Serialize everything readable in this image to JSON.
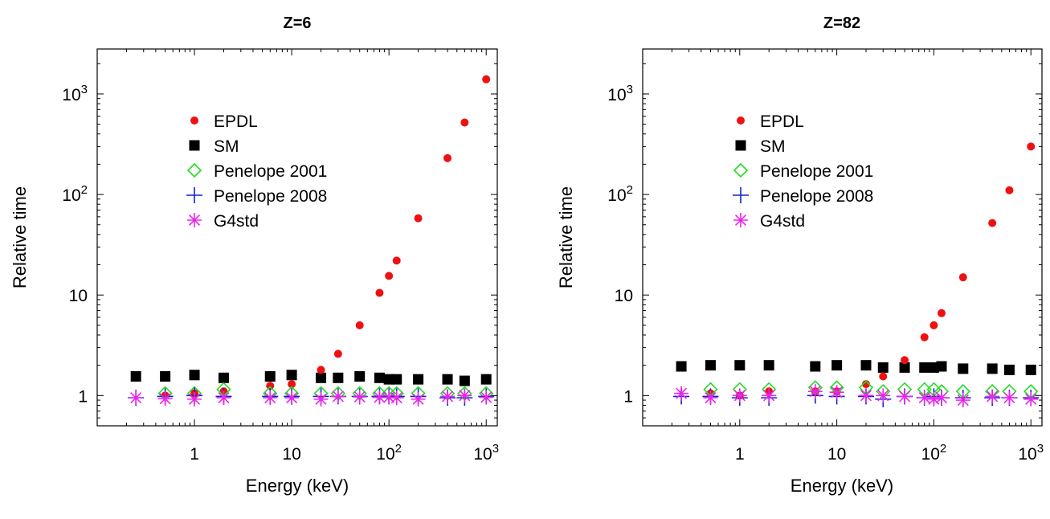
{
  "chart_data": [
    {
      "type": "scatter",
      "title": "Z=6",
      "xlabel": "Energy (keV)",
      "ylabel": "Relative time",
      "xscale": "log",
      "yscale": "log",
      "xlim": [
        0.1,
        1300
      ],
      "ylim": [
        0.5,
        2800
      ],
      "xticks": [
        {
          "v": 1,
          "base": "1",
          "exp": ""
        },
        {
          "v": 10,
          "base": "10",
          "exp": ""
        },
        {
          "v": 100,
          "base": "10",
          "exp": "2"
        },
        {
          "v": 1000,
          "base": "10",
          "exp": "3"
        }
      ],
      "yticks": [
        {
          "v": 1,
          "base": "1",
          "exp": ""
        },
        {
          "v": 10,
          "base": "10",
          "exp": ""
        },
        {
          "v": 100,
          "base": "10",
          "exp": "2"
        },
        {
          "v": 1000,
          "base": "10",
          "exp": "3"
        }
      ],
      "legend_position": "upper-left",
      "grid": false,
      "series": [
        {
          "name": "EPDL",
          "marker": "dot",
          "color": "#ee1111",
          "x": [
            0.5,
            1,
            2,
            6,
            10,
            20,
            30,
            50,
            80,
            100,
            120,
            200,
            400,
            600,
            1000
          ],
          "y": [
            1.0,
            1.05,
            1.1,
            1.25,
            1.3,
            1.8,
            2.6,
            5.0,
            10.5,
            15.5,
            22,
            58,
            230,
            520,
            1400
          ]
        },
        {
          "name": "SM",
          "marker": "square",
          "color": "#000000",
          "x": [
            0.25,
            0.5,
            1,
            2,
            6,
            10,
            20,
            30,
            50,
            80,
            100,
            120,
            200,
            400,
            600,
            1000
          ],
          "y": [
            1.55,
            1.55,
            1.6,
            1.5,
            1.55,
            1.6,
            1.5,
            1.5,
            1.55,
            1.5,
            1.45,
            1.45,
            1.45,
            1.45,
            1.4,
            1.45
          ]
        },
        {
          "name": "Penelope 2001",
          "marker": "diamond",
          "color": "#22dd22",
          "x": [
            0.5,
            1,
            2,
            6,
            10,
            20,
            30,
            50,
            80,
            100,
            120,
            200,
            400,
            600,
            1000
          ],
          "y": [
            1.05,
            1.05,
            1.15,
            1.05,
            1.05,
            1.05,
            1.05,
            1.05,
            1.05,
            1.05,
            1.05,
            1.05,
            1.05,
            1.05,
            1.05
          ]
        },
        {
          "name": "Penelope 2008",
          "marker": "plus",
          "color": "#1122cc",
          "x": [
            0.25,
            0.5,
            1,
            2,
            6,
            10,
            20,
            30,
            50,
            80,
            100,
            120,
            200,
            400,
            600,
            1000
          ],
          "y": [
            0.95,
            0.98,
            1.0,
            0.98,
            0.98,
            0.98,
            0.98,
            0.98,
            0.98,
            0.98,
            0.98,
            0.98,
            0.98,
            0.95,
            0.95,
            0.98
          ]
        },
        {
          "name": "G4std",
          "marker": "star",
          "color": "#ee22ee",
          "x": [
            0.25,
            0.5,
            1,
            2,
            6,
            10,
            20,
            30,
            50,
            80,
            100,
            120,
            200,
            400,
            600,
            1000
          ],
          "y": [
            0.95,
            0.93,
            0.92,
            0.95,
            0.95,
            0.95,
            0.92,
            0.98,
            0.97,
            0.96,
            0.96,
            0.95,
            0.92,
            0.98,
            1.0,
            0.96
          ]
        }
      ]
    },
    {
      "type": "scatter",
      "title": "Z=82",
      "xlabel": "Energy (keV)",
      "ylabel": "Relative time",
      "xscale": "log",
      "yscale": "log",
      "xlim": [
        0.1,
        1300
      ],
      "ylim": [
        0.5,
        2800
      ],
      "xticks": [
        {
          "v": 1,
          "base": "1",
          "exp": ""
        },
        {
          "v": 10,
          "base": "10",
          "exp": ""
        },
        {
          "v": 100,
          "base": "10",
          "exp": "2"
        },
        {
          "v": 1000,
          "base": "10",
          "exp": "3"
        }
      ],
      "yticks": [
        {
          "v": 1,
          "base": "1",
          "exp": ""
        },
        {
          "v": 10,
          "base": "10",
          "exp": ""
        },
        {
          "v": 100,
          "base": "10",
          "exp": "2"
        },
        {
          "v": 1000,
          "base": "10",
          "exp": "3"
        }
      ],
      "legend_position": "upper-left",
      "grid": false,
      "series": [
        {
          "name": "EPDL",
          "marker": "dot",
          "color": "#ee1111",
          "x": [
            0.5,
            1,
            2,
            6,
            10,
            20,
            30,
            50,
            80,
            100,
            120,
            200,
            400,
            600,
            1000
          ],
          "y": [
            1.05,
            1.0,
            1.1,
            1.1,
            1.1,
            1.3,
            1.55,
            2.25,
            3.8,
            5.0,
            6.6,
            15,
            52,
            110,
            300
          ]
        },
        {
          "name": "SM",
          "marker": "square",
          "color": "#000000",
          "x": [
            0.25,
            0.5,
            1,
            2,
            6,
            10,
            20,
            30,
            50,
            80,
            100,
            120,
            200,
            400,
            600,
            1000
          ],
          "y": [
            1.95,
            2.0,
            2.0,
            2.0,
            1.95,
            2.0,
            2.0,
            1.9,
            1.9,
            1.9,
            1.9,
            1.95,
            1.85,
            1.85,
            1.8,
            1.8
          ]
        },
        {
          "name": "Penelope 2001",
          "marker": "diamond",
          "color": "#22dd22",
          "x": [
            0.5,
            1,
            2,
            6,
            10,
            20,
            30,
            50,
            80,
            100,
            120,
            200,
            400,
            600,
            1000
          ],
          "y": [
            1.15,
            1.15,
            1.15,
            1.2,
            1.2,
            1.2,
            1.1,
            1.15,
            1.15,
            1.15,
            1.1,
            1.1,
            1.1,
            1.1,
            1.1
          ]
        },
        {
          "name": "Penelope 2008",
          "marker": "plus",
          "color": "#1122cc",
          "x": [
            0.25,
            0.5,
            1,
            2,
            6,
            10,
            20,
            30,
            50,
            80,
            100,
            120,
            200,
            400,
            600,
            1000
          ],
          "y": [
            0.98,
            0.98,
            0.95,
            0.95,
            1.0,
            0.98,
            0.98,
            0.92,
            0.98,
            0.95,
            0.98,
            0.95,
            0.95,
            0.95,
            0.95,
            0.95
          ]
        },
        {
          "name": "G4std",
          "marker": "star",
          "color": "#ee22ee",
          "x": [
            0.25,
            0.5,
            1,
            2,
            6,
            10,
            20,
            30,
            50,
            80,
            100,
            120,
            200,
            400,
            600,
            1000
          ],
          "y": [
            1.05,
            0.95,
            1.0,
            1.0,
            1.1,
            1.08,
            1.0,
            1.0,
            0.98,
            0.95,
            0.92,
            0.95,
            0.9,
            0.98,
            0.95,
            0.92
          ]
        }
      ]
    }
  ]
}
